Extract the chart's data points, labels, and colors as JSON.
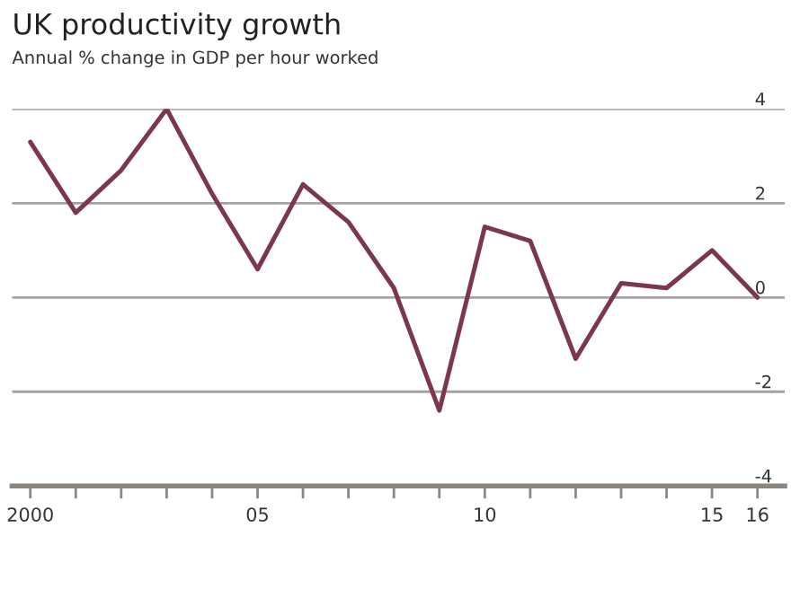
{
  "chart_data": {
    "type": "line",
    "title": "UK productivity growth",
    "subtitle": "Annual % change in GDP per hour worked",
    "x": [
      2000,
      2001,
      2002,
      2003,
      2004,
      2005,
      2006,
      2007,
      2008,
      2009,
      2010,
      2011,
      2012,
      2013,
      2014,
      2015,
      2016
    ],
    "series": [
      {
        "color": "#7d3650",
        "values": [
          3.3,
          1.8,
          2.7,
          4.0,
          2.2,
          0.6,
          2.4,
          1.6,
          0.2,
          -2.4,
          1.5,
          1.2,
          -1.3,
          0.3,
          0.2,
          1.0,
          0.0
        ]
      }
    ],
    "xlim": [
      1999.6,
      2016.6
    ],
    "ylim": [
      -4,
      4
    ],
    "xticks": [
      2000,
      {
        "value": 2001,
        "label": null
      },
      {
        "value": 2002,
        "label": null
      },
      {
        "value": 2003,
        "label": null
      },
      {
        "value": 2004,
        "label": null
      },
      {
        "value": 2005,
        "label": "05"
      },
      {
        "value": 2006,
        "label": null
      },
      {
        "value": 2007,
        "label": null
      },
      {
        "value": 2008,
        "label": null
      },
      {
        "value": 2009,
        "label": null
      },
      {
        "value": 2010,
        "label": "10"
      },
      {
        "value": 2011,
        "label": null
      },
      {
        "value": 2012,
        "label": null
      },
      {
        "value": 2013,
        "label": null
      },
      {
        "value": 2014,
        "label": null
      },
      {
        "value": 2015,
        "label": "15"
      },
      {
        "value": 2016,
        "label": "16"
      }
    ],
    "yticks": [
      -4,
      -2,
      0,
      2,
      4
    ],
    "grid": "y",
    "marker": "none",
    "line_style": "solid",
    "legend": false
  }
}
